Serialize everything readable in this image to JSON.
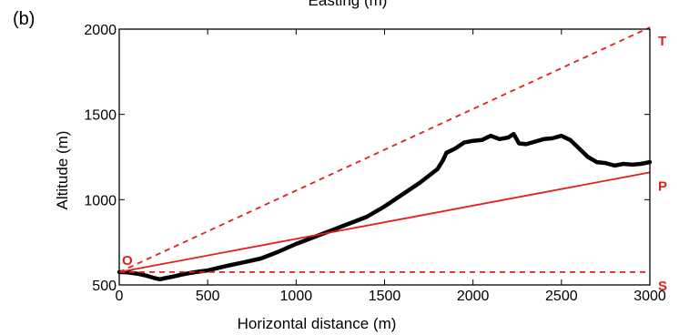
{
  "chart_data": {
    "type": "line",
    "panel_label": "(b)",
    "top_label": "Easting (m)",
    "xlabel": "Horizontal distance (m)",
    "ylabel": "Altitude (m)",
    "xlim": [
      0,
      3000
    ],
    "ylim": [
      500,
      2000
    ],
    "xticks": [
      0,
      500,
      1000,
      1500,
      2000,
      2500,
      3000
    ],
    "yticks": [
      500,
      1000,
      1500,
      2000
    ],
    "xtick_labels": [
      "0",
      "500",
      "1000",
      "1500",
      "2000",
      "2500",
      "3000"
    ],
    "ytick_labels": [
      "500",
      "1000",
      "1500",
      "2000"
    ],
    "grid": false,
    "accent_color": "#e0201b",
    "profile_color": "#000000",
    "series": [
      {
        "style": "solid-thick",
        "x": [
          0,
          50,
          100,
          150,
          200,
          230,
          260,
          300,
          350,
          400,
          450,
          500,
          600,
          700,
          800,
          900,
          1000,
          1100,
          1200,
          1300,
          1400,
          1500,
          1600,
          1700,
          1800,
          1830,
          1850,
          1900,
          1950,
          2000,
          2050,
          2100,
          2150,
          2200,
          2230,
          2260,
          2300,
          2350,
          2400,
          2450,
          2500,
          2550,
          2600,
          2650,
          2700,
          2750,
          2800,
          2850,
          2900,
          2950,
          3000
        ],
        "y": [
          575,
          573,
          566,
          555,
          540,
          533,
          540,
          548,
          560,
          570,
          578,
          585,
          610,
          632,
          655,
          695,
          740,
          780,
          820,
          860,
          900,
          960,
          1030,
          1100,
          1180,
          1230,
          1275,
          1300,
          1335,
          1345,
          1350,
          1375,
          1355,
          1365,
          1385,
          1330,
          1325,
          1340,
          1355,
          1360,
          1375,
          1350,
          1300,
          1250,
          1220,
          1215,
          1200,
          1210,
          1205,
          1210,
          1220
        ]
      },
      {
        "label": "P",
        "style": "solid",
        "x": [
          0,
          3000
        ],
        "y": [
          575,
          1160
        ]
      },
      {
        "label": "T",
        "style": "dashed",
        "x": [
          0,
          3000
        ],
        "y": [
          575,
          2010
        ]
      },
      {
        "label": "S",
        "style": "dashed",
        "x": [
          0,
          3000
        ],
        "y": [
          575,
          575
        ]
      }
    ],
    "origin_label": "O"
  }
}
